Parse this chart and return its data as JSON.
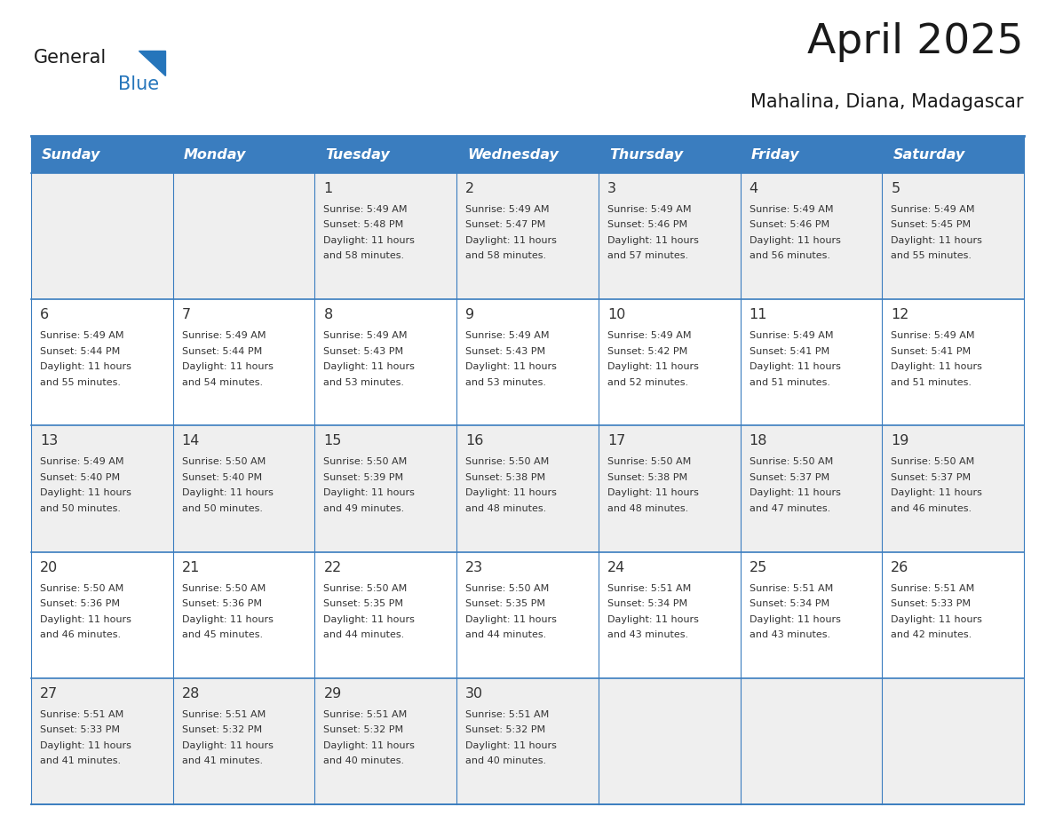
{
  "title": "April 2025",
  "subtitle": "Mahalina, Diana, Madagascar",
  "header_color": "#3a7dbf",
  "header_text_color": "#ffffff",
  "row_bg_even": "#efefef",
  "row_bg_odd": "#ffffff",
  "border_color": "#3a7dbf",
  "text_color": "#333333",
  "days_of_week": [
    "Sunday",
    "Monday",
    "Tuesday",
    "Wednesday",
    "Thursday",
    "Friday",
    "Saturday"
  ],
  "calendar_data": [
    [
      {
        "day": "",
        "sunrise": "",
        "sunset": "",
        "daylight_suffix": ""
      },
      {
        "day": "",
        "sunrise": "",
        "sunset": "",
        "daylight_suffix": ""
      },
      {
        "day": "1",
        "sunrise": "5:49 AM",
        "sunset": "5:48 PM",
        "daylight_suffix": "58 minutes."
      },
      {
        "day": "2",
        "sunrise": "5:49 AM",
        "sunset": "5:47 PM",
        "daylight_suffix": "58 minutes."
      },
      {
        "day": "3",
        "sunrise": "5:49 AM",
        "sunset": "5:46 PM",
        "daylight_suffix": "57 minutes."
      },
      {
        "day": "4",
        "sunrise": "5:49 AM",
        "sunset": "5:46 PM",
        "daylight_suffix": "56 minutes."
      },
      {
        "day": "5",
        "sunrise": "5:49 AM",
        "sunset": "5:45 PM",
        "daylight_suffix": "55 minutes."
      }
    ],
    [
      {
        "day": "6",
        "sunrise": "5:49 AM",
        "sunset": "5:44 PM",
        "daylight_suffix": "55 minutes."
      },
      {
        "day": "7",
        "sunrise": "5:49 AM",
        "sunset": "5:44 PM",
        "daylight_suffix": "54 minutes."
      },
      {
        "day": "8",
        "sunrise": "5:49 AM",
        "sunset": "5:43 PM",
        "daylight_suffix": "53 minutes."
      },
      {
        "day": "9",
        "sunrise": "5:49 AM",
        "sunset": "5:43 PM",
        "daylight_suffix": "53 minutes."
      },
      {
        "day": "10",
        "sunrise": "5:49 AM",
        "sunset": "5:42 PM",
        "daylight_suffix": "52 minutes."
      },
      {
        "day": "11",
        "sunrise": "5:49 AM",
        "sunset": "5:41 PM",
        "daylight_suffix": "51 minutes."
      },
      {
        "day": "12",
        "sunrise": "5:49 AM",
        "sunset": "5:41 PM",
        "daylight_suffix": "51 minutes."
      }
    ],
    [
      {
        "day": "13",
        "sunrise": "5:49 AM",
        "sunset": "5:40 PM",
        "daylight_suffix": "50 minutes."
      },
      {
        "day": "14",
        "sunrise": "5:50 AM",
        "sunset": "5:40 PM",
        "daylight_suffix": "50 minutes."
      },
      {
        "day": "15",
        "sunrise": "5:50 AM",
        "sunset": "5:39 PM",
        "daylight_suffix": "49 minutes."
      },
      {
        "day": "16",
        "sunrise": "5:50 AM",
        "sunset": "5:38 PM",
        "daylight_suffix": "48 minutes."
      },
      {
        "day": "17",
        "sunrise": "5:50 AM",
        "sunset": "5:38 PM",
        "daylight_suffix": "48 minutes."
      },
      {
        "day": "18",
        "sunrise": "5:50 AM",
        "sunset": "5:37 PM",
        "daylight_suffix": "47 minutes."
      },
      {
        "day": "19",
        "sunrise": "5:50 AM",
        "sunset": "5:37 PM",
        "daylight_suffix": "46 minutes."
      }
    ],
    [
      {
        "day": "20",
        "sunrise": "5:50 AM",
        "sunset": "5:36 PM",
        "daylight_suffix": "46 minutes."
      },
      {
        "day": "21",
        "sunrise": "5:50 AM",
        "sunset": "5:36 PM",
        "daylight_suffix": "45 minutes."
      },
      {
        "day": "22",
        "sunrise": "5:50 AM",
        "sunset": "5:35 PM",
        "daylight_suffix": "44 minutes."
      },
      {
        "day": "23",
        "sunrise": "5:50 AM",
        "sunset": "5:35 PM",
        "daylight_suffix": "44 minutes."
      },
      {
        "day": "24",
        "sunrise": "5:51 AM",
        "sunset": "5:34 PM",
        "daylight_suffix": "43 minutes."
      },
      {
        "day": "25",
        "sunrise": "5:51 AM",
        "sunset": "5:34 PM",
        "daylight_suffix": "43 minutes."
      },
      {
        "day": "26",
        "sunrise": "5:51 AM",
        "sunset": "5:33 PM",
        "daylight_suffix": "42 minutes."
      }
    ],
    [
      {
        "day": "27",
        "sunrise": "5:51 AM",
        "sunset": "5:33 PM",
        "daylight_suffix": "41 minutes."
      },
      {
        "day": "28",
        "sunrise": "5:51 AM",
        "sunset": "5:32 PM",
        "daylight_suffix": "41 minutes."
      },
      {
        "day": "29",
        "sunrise": "5:51 AM",
        "sunset": "5:32 PM",
        "daylight_suffix": "40 minutes."
      },
      {
        "day": "30",
        "sunrise": "5:51 AM",
        "sunset": "5:32 PM",
        "daylight_suffix": "40 minutes."
      },
      {
        "day": "",
        "sunrise": "",
        "sunset": "",
        "daylight_suffix": ""
      },
      {
        "day": "",
        "sunrise": "",
        "sunset": "",
        "daylight_suffix": ""
      },
      {
        "day": "",
        "sunrise": "",
        "sunset": "",
        "daylight_suffix": ""
      }
    ]
  ],
  "logo_color1": "#1a1a1a",
  "logo_color2": "#2575bb",
  "logo_triangle_color": "#2575bb"
}
